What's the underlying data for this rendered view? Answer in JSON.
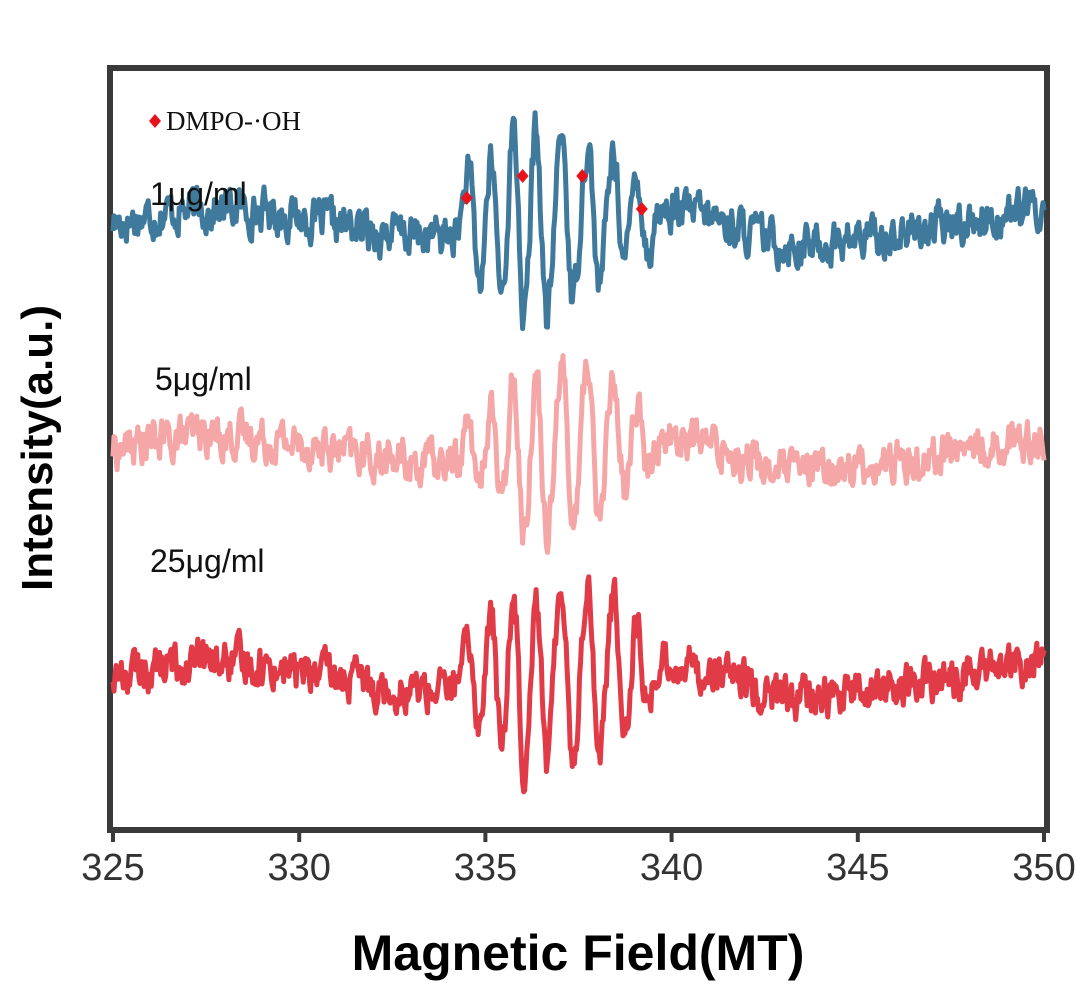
{
  "chart_data": {
    "type": "line",
    "title": "",
    "xlabel": "Magnetic Field(MT)",
    "ylabel": "Intensity(a.u.)",
    "xlim": [
      325,
      350
    ],
    "xticks": [
      "325",
      "330",
      "335",
      "340",
      "345",
      "350"
    ],
    "legend": {
      "marker": "diamond",
      "marker_color": "#e8121b",
      "label": "DMPO-·OH",
      "position": "top-left"
    },
    "peak_markers_x": [
      334.5,
      336.0,
      337.6,
      339.2
    ],
    "series": [
      {
        "name": "1μg/ml",
        "color": "#3f7a9c",
        "baseline": 0.8,
        "peaks_x": [
          334.7,
          335.3,
          335.9,
          336.5,
          337.2,
          337.9,
          338.6,
          339.2
        ],
        "peaks_amp": [
          0.08,
          0.1,
          0.14,
          0.14,
          0.12,
          0.1,
          0.08,
          0.06
        ]
      },
      {
        "name": "5μg/ml",
        "color": "#f4a7a6",
        "baseline": 0.5,
        "peaks_x": [
          334.7,
          335.3,
          335.9,
          336.5,
          337.2,
          337.9,
          338.6,
          339.2
        ],
        "peaks_amp": [
          0.05,
          0.08,
          0.12,
          0.11,
          0.12,
          0.11,
          0.08,
          0.05
        ]
      },
      {
        "name": "25μg/ml",
        "color": "#e23b48",
        "baseline": 0.2,
        "peaks_x": [
          334.7,
          335.3,
          335.9,
          336.5,
          337.2,
          337.9,
          338.6,
          339.2
        ],
        "peaks_amp": [
          0.06,
          0.1,
          0.13,
          0.12,
          0.13,
          0.12,
          0.09,
          0.06
        ]
      }
    ]
  }
}
